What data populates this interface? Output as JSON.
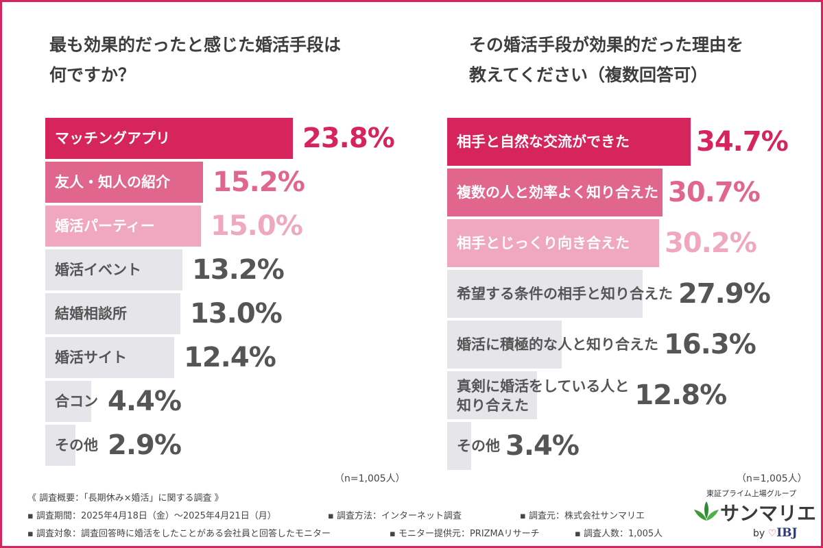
{
  "chart_data": [
    {
      "type": "bar",
      "orientation": "horizontal",
      "title_lines": [
        "最も効果的だったと感じた婚活手段は",
        "何ですか？"
      ],
      "categories": [
        "マッチングアプリ",
        "友人・知人の紹介",
        "婚活パーティー",
        "婚活イベント",
        "結婚相談所",
        "婚活サイト",
        "合コン",
        "その他"
      ],
      "values": [
        23.8,
        15.2,
        15.0,
        13.2,
        13.0,
        12.4,
        4.4,
        2.9
      ],
      "value_labels": [
        "23.8%",
        "15.2%",
        "15.0%",
        "13.2%",
        "13.0%",
        "12.4%",
        "4.4%",
        "2.9%"
      ],
      "note": "（n=1,005人）",
      "xlim": [
        0,
        31
      ]
    },
    {
      "type": "bar",
      "orientation": "horizontal",
      "title_lines": [
        "その婚活手段が効果的だった理由を",
        "教えてください（複数回答可）"
      ],
      "categories": [
        [
          "相手と自然な交流ができた"
        ],
        [
          "複数の人と効率よく知り合えた"
        ],
        [
          "相手とじっくり向き合えた"
        ],
        [
          "希望する条件の相手と知り合えた"
        ],
        [
          "婚活に積極的な人と知り合えた"
        ],
        [
          "真剣に婚活をしている人と",
          "知り合えた"
        ],
        [
          "その他"
        ]
      ],
      "values": [
        34.7,
        30.7,
        30.2,
        27.9,
        16.3,
        12.8,
        3.4
      ],
      "value_labels": [
        "34.7%",
        "30.7%",
        "30.2%",
        "27.9%",
        "16.3%",
        "12.8%",
        "3.4%"
      ],
      "note": "（n=1,005人）",
      "xlim": [
        0,
        46
      ]
    }
  ],
  "colors": {
    "frame": "#d6245c",
    "rank1": "#d6245c",
    "rank2": "#e0668d",
    "rank3": "#f0a8c0",
    "other": "#e6e6ea",
    "label_on_dark": "#ffffff",
    "label_on_light": "#555555",
    "value_other": "#555555"
  },
  "footer": {
    "heading": "《 調査概要：「長期休み×婚活」に関する調査 》",
    "items": [
      "▪ 調査期間：2025年4月18日（金）〜2025年4月21日（月）",
      "▪ 調査方法：インターネット調査",
      "▪ 調査元：株式会社サンマリエ",
      "▪ 調査対象：調査回答時に婚活をしたことがある会社員と回答したモニター",
      "▪ モニター提供元：PRIZMAリサーチ",
      "▪ 調査人数：1,005人"
    ]
  },
  "brand": {
    "group": "東証プライム上場グループ",
    "name": "サンマリエ",
    "by": "by",
    "heart": "♡",
    "ibj": "IBJ"
  }
}
